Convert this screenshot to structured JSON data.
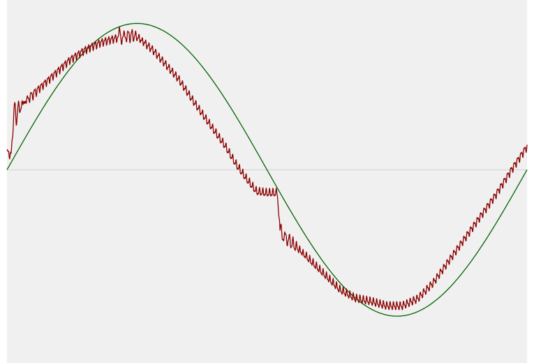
{
  "chart_data": {
    "type": "line",
    "title": "",
    "xlabel": "",
    "ylabel": "",
    "xlim": [
      0,
      1
    ],
    "ylim": [
      -1.32,
      1.16
    ],
    "grid": false,
    "legend": "none",
    "zero_line": true,
    "series": [
      {
        "color": "#006400",
        "kind": "sine",
        "amplitude": 1.0,
        "phase": 0
      },
      {
        "color": "#8b0000",
        "kind": "noisy",
        "x": [
          0.0,
          0.008,
          0.013,
          0.03,
          0.06,
          0.09,
          0.12,
          0.15,
          0.18,
          0.21,
          0.24,
          0.25,
          0.26,
          0.28,
          0.3,
          0.33,
          0.36,
          0.39,
          0.42,
          0.44,
          0.46,
          0.48,
          0.5,
          0.52,
          0.525,
          0.56,
          0.6,
          0.64,
          0.67,
          0.7,
          0.73,
          0.76,
          0.79,
          0.82,
          0.85,
          0.88,
          0.91,
          0.94,
          0.97,
          1.0
        ],
        "y": [
          0.12,
          0.1,
          0.36,
          0.45,
          0.55,
          0.65,
          0.75,
          0.82,
          0.87,
          0.9,
          0.92,
          0.91,
          0.88,
          0.82,
          0.74,
          0.62,
          0.46,
          0.31,
          0.16,
          0.04,
          -0.06,
          -0.15,
          -0.16,
          -0.16,
          -0.43,
          -0.54,
          -0.68,
          -0.82,
          -0.88,
          -0.9,
          -0.93,
          -0.93,
          -0.88,
          -0.77,
          -0.62,
          -0.47,
          -0.32,
          -0.17,
          0.0,
          0.16
        ]
      }
    ]
  }
}
